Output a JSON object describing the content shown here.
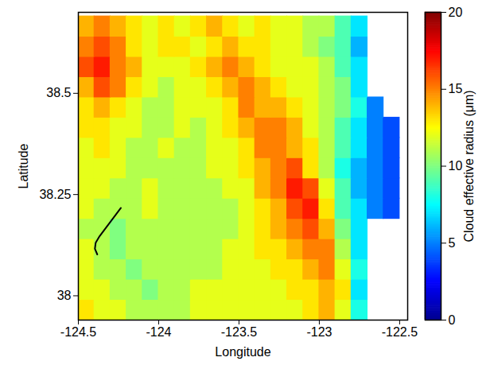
{
  "chart_data": {
    "type": "heatmap",
    "xlabel": "Longitude",
    "ylabel": "Latitude",
    "xlim": [
      -124.5,
      -122.45
    ],
    "ylim": [
      37.94,
      38.7
    ],
    "xticks": [
      -124.5,
      -124,
      -123.5,
      -123,
      -122.5
    ],
    "yticks": [
      38,
      38.25,
      38.5
    ],
    "x_edges": [
      -124.5,
      -124.4,
      -124.3,
      -124.2,
      -124.1,
      -124.0,
      -123.9,
      -123.8,
      -123.7,
      -123.6,
      -123.5,
      -123.4,
      -123.3,
      -123.2,
      -123.1,
      -123.0,
      -122.9,
      -122.8,
      -122.7,
      -122.6,
      -122.5
    ],
    "y_edges": [
      37.94,
      37.99,
      38.04,
      38.09,
      38.14,
      38.19,
      38.24,
      38.29,
      38.34,
      38.39,
      38.44,
      38.49,
      38.54,
      38.59,
      38.64,
      38.69
    ],
    "cells": [
      [
        13,
        12,
        12,
        11,
        11,
        11,
        11,
        12,
        12,
        12,
        12,
        12,
        12,
        12,
        13,
        14,
        12,
        8,
        null,
        null
      ],
      [
        12,
        12,
        11,
        11,
        10,
        11,
        11,
        12,
        12,
        12,
        12,
        12,
        12,
        13,
        13,
        14,
        13,
        7,
        null,
        null
      ],
      [
        12,
        11,
        11,
        10,
        11,
        11,
        11,
        11,
        11,
        12,
        12,
        12,
        13,
        13,
        14,
        15,
        12,
        8,
        null,
        null
      ],
      [
        12,
        11,
        10,
        11,
        11,
        11,
        11,
        11,
        11,
        12,
        12,
        13,
        13,
        14,
        15,
        15,
        11,
        7,
        null,
        null
      ],
      [
        11,
        11,
        10,
        11,
        11,
        11,
        11,
        11,
        11,
        11,
        12,
        13,
        14,
        15,
        16,
        14,
        10,
        7,
        null,
        null
      ],
      [
        12,
        11,
        11,
        11,
        12,
        11,
        11,
        11,
        11,
        11,
        12,
        13,
        14,
        16,
        17,
        13,
        9,
        7,
        5,
        4
      ],
      [
        12,
        12,
        11,
        11,
        12,
        11,
        11,
        11,
        11,
        12,
        12,
        14,
        15,
        17,
        16,
        12,
        9,
        6,
        5,
        4
      ],
      [
        12,
        12,
        12,
        11,
        11,
        11,
        11,
        11,
        12,
        12,
        13,
        14,
        15,
        16,
        13,
        11,
        8,
        6,
        5,
        4
      ],
      [
        12,
        13,
        12,
        11,
        11,
        12,
        11,
        11,
        12,
        12,
        13,
        15,
        15,
        14,
        13,
        11,
        9,
        7,
        5,
        4
      ],
      [
        13,
        13,
        12,
        12,
        11,
        11,
        12,
        11,
        12,
        13,
        14,
        15,
        15,
        14,
        12,
        11,
        9,
        7,
        5,
        4
      ],
      [
        13,
        14,
        13,
        12,
        11,
        11,
        12,
        12,
        12,
        13,
        15,
        14,
        14,
        13,
        12,
        11,
        10,
        8,
        5,
        null
      ],
      [
        14,
        16,
        15,
        13,
        12,
        11,
        12,
        12,
        13,
        14,
        15,
        14,
        13,
        12,
        12,
        11,
        10,
        7,
        null,
        null
      ],
      [
        16,
        17,
        15,
        14,
        12,
        12,
        12,
        13,
        14,
        15,
        14,
        13,
        12,
        12,
        12,
        11,
        9,
        7,
        null,
        null
      ],
      [
        15,
        16,
        15,
        13,
        12,
        13,
        13,
        12,
        13,
        14,
        13,
        13,
        12,
        12,
        11,
        10,
        9,
        6,
        null,
        null
      ],
      [
        14,
        15,
        14,
        13,
        12,
        13,
        12,
        13,
        14,
        13,
        12,
        13,
        12,
        12,
        11,
        11,
        9,
        7,
        null,
        null
      ]
    ],
    "colorbar": {
      "label": "Cloud effective radius (μm)",
      "lim": [
        0,
        20
      ],
      "ticks": [
        0,
        5,
        10,
        15,
        20
      ]
    },
    "track": {
      "x": [
        -124.235,
        -124.368,
        -124.392,
        -124.397,
        -124.382
      ],
      "y": [
        38.217,
        38.147,
        38.131,
        38.116,
        38.102
      ],
      "color": "#000000"
    }
  }
}
